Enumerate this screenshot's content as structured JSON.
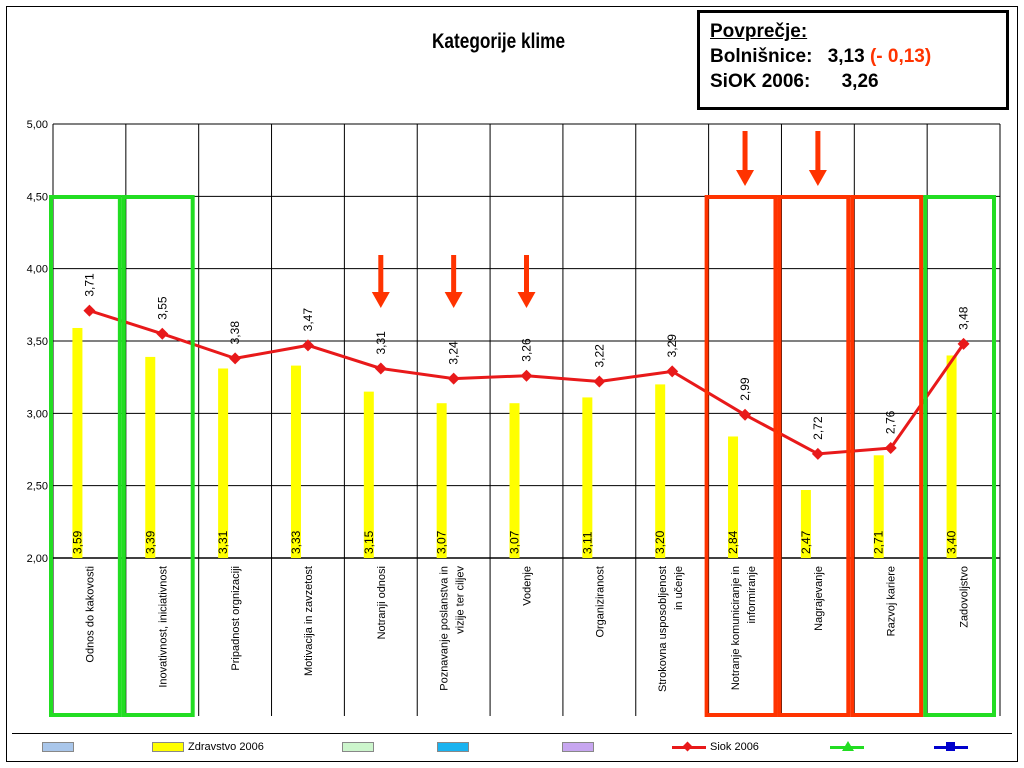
{
  "chart_data": {
    "type": "bar",
    "title": "Kategorije klime",
    "ylim": [
      2.0,
      5.0
    ],
    "yticks": [
      "5,00",
      "4,50",
      "4,00",
      "3,50",
      "3,00",
      "2,50",
      "2,00"
    ],
    "grid": true,
    "categories": [
      "Odnos do kakovosti",
      "Inovativnost, iniciativnost",
      "Pripadnost orgnizaciji",
      "Motivacija in zavzetost",
      "Notranji odnosi",
      "Poznavanje poslanstva in vizije ter ciljev",
      "Vodenje",
      "Organiziranost",
      "Strokovna usposobljenost in učenje",
      "Notranje komuniciranje in informiranje",
      "Nagrajevanje",
      "Razvoj kariere",
      "Zadovoljstvo"
    ],
    "series": [
      {
        "name": "Zdravstvo 2006",
        "kind": "bar",
        "color": "#ffff00",
        "values": [
          3.59,
          3.39,
          3.31,
          3.33,
          3.15,
          3.07,
          3.07,
          3.11,
          3.2,
          2.84,
          2.47,
          2.71,
          3.4
        ],
        "labels": [
          "3,59",
          "3,39",
          "3,31",
          "3,33",
          "3,15",
          "3,07",
          "3,07",
          "3,11",
          "3,20",
          "2,84",
          "2,47",
          "2,71",
          "3,40"
        ]
      },
      {
        "name": "Siok 2006",
        "kind": "line",
        "color": "#e8191a",
        "values": [
          3.71,
          3.55,
          3.38,
          3.47,
          3.31,
          3.24,
          3.26,
          3.22,
          3.29,
          2.99,
          2.72,
          2.76,
          3.48
        ],
        "labels": [
          "3,71",
          "3,55",
          "3,38",
          "3,47",
          "3,31",
          "3,24",
          "3,26",
          "3,22",
          "3,29",
          "2,99",
          "2,72",
          "2,76",
          "3,48"
        ]
      }
    ],
    "highlights": {
      "green_boxes": [
        0,
        1,
        12
      ],
      "red_boxes": [
        9,
        10,
        11
      ],
      "arrows": [
        4,
        5,
        6,
        9,
        10
      ],
      "green_color": "#22dd22",
      "red_color": "#ff3300"
    },
    "legend": {
      "placement": "bottom",
      "items": [
        {
          "label": "",
          "type": "swatch",
          "color": "#a9c6ea"
        },
        {
          "label": "Zdravstvo 2006",
          "type": "swatch",
          "color": "#ffff00"
        },
        {
          "label": "",
          "type": "swatch",
          "color": "#ccf5cc"
        },
        {
          "label": "",
          "type": "swatch",
          "color": "#1ab3f0"
        },
        {
          "label": "",
          "type": "swatch",
          "color": "#c7a6f0"
        },
        {
          "label": "Siok 2006",
          "type": "line",
          "color": "#e8191a",
          "marker": "diamond"
        },
        {
          "label": "",
          "type": "line",
          "color": "#22dd22",
          "marker": "triangle"
        },
        {
          "label": "",
          "type": "line",
          "color": "#0000cc",
          "marker": "square"
        }
      ]
    }
  },
  "average_box": {
    "heading": "Povprečje:",
    "row1_label": "Bolnišnice:",
    "row1_value": "3,13",
    "row1_delta": "(- 0,13)",
    "row2_label": "SiOK 2006:",
    "row2_value": "3,26"
  }
}
